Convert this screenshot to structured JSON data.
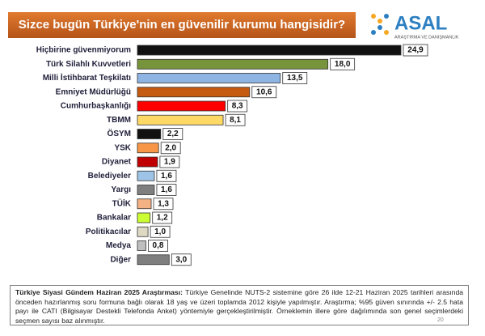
{
  "chart_data": {
    "type": "barh",
    "title": "Sizce bugün Türkiye'nin en güvenilir kurumu hangisidir?",
    "categories": [
      "Hiçbirine güvenmiyorum",
      "Türk Silahlı Kuvvetleri",
      "Milli İstihbarat Teşkilatı",
      "Emniyet Müdürlüğü",
      "Cumhurbaşkanlığı",
      "TBMM",
      "ÖSYM",
      "YSK",
      "Diyanet",
      "Belediyeler",
      "Yargı",
      "TÜİK",
      "Bankalar",
      "Politikacılar",
      "Medya",
      "Diğer"
    ],
    "values": [
      24.9,
      18.0,
      13.5,
      10.6,
      8.3,
      8.1,
      2.2,
      2.0,
      1.9,
      1.6,
      1.6,
      1.3,
      1.2,
      1.0,
      0.8,
      3.0
    ],
    "value_labels": [
      "24,9",
      "18,0",
      "13,5",
      "10,6",
      "8,3",
      "8,1",
      "2,2",
      "2,0",
      "1,9",
      "1,6",
      "1,6",
      "1,3",
      "1,2",
      "1,0",
      "0,8",
      "3,0"
    ],
    "colors": [
      "#111111",
      "#77933c",
      "#8eb4e3",
      "#c55a11",
      "#ff0000",
      "#ffd966",
      "#111111",
      "#f79646",
      "#c00000",
      "#9dc3e6",
      "#7f7f7f",
      "#f4b183",
      "#ccff33",
      "#ddd9c3",
      "#bfbfbf",
      "#7f7f7f"
    ]
  },
  "logo": {
    "name": "ASAL",
    "tagline": "ARAŞTIRMA VE DANIŞMANLIK"
  },
  "note": {
    "lead": "Türkiye Siyasi Gündem Haziran 2025 Araştırması:",
    "text": "Türkiye Genelinde NUTS-2 sistemine göre 26 ilde 12-21 Haziran 2025 tarihleri arasında önceden hazırlanmış soru formuna bağlı olarak 18 yaş ve üzeri toplamda 2012 kişiyle yapılmıştır. Araştırma; %95 güven sınırında +/- 2.5 hata payı ile CATI (Bilgisayar Destekli Telefonda Anket) yöntemiyle gerçekleştirilmiştir. Örneklemin illere göre dağılımında son genel seçimlerdeki seçmen sayısı baz alınmıştır."
  },
  "page_number": "20"
}
